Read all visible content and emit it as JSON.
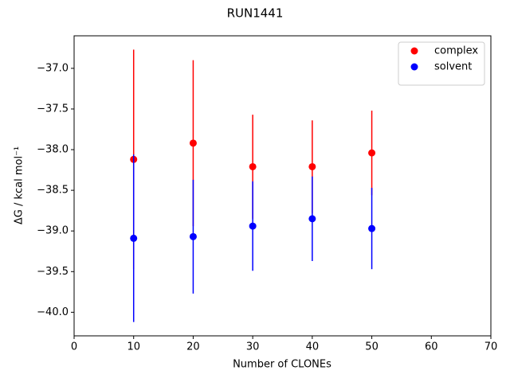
{
  "chart_data": {
    "type": "errorbar-scatter",
    "title": "RUN1441",
    "x_label": "Number of CLONEs",
    "y_label": "ΔG / kcal mol⁻¹",
    "xlim": [
      0,
      70
    ],
    "xticks": [
      0,
      10,
      20,
      30,
      40,
      50,
      60,
      70
    ],
    "ylim": [
      -40.29,
      -36.6
    ],
    "yticks": [
      {
        "value": -37.0,
        "label": "−37.0"
      },
      {
        "value": -37.5,
        "label": "−37.5"
      },
      {
        "value": -38.0,
        "label": "−38.0"
      },
      {
        "value": -38.5,
        "label": "−38.5"
      },
      {
        "value": -39.0,
        "label": "−39.0"
      },
      {
        "value": -39.5,
        "label": "−39.5"
      },
      {
        "value": -40.0,
        "label": "−40.0"
      }
    ],
    "legend_position": "upper right",
    "series": [
      {
        "name": "complex",
        "color": "#ff0000",
        "x": [
          10,
          20,
          30,
          40,
          50
        ],
        "values": [
          -38.12,
          -37.92,
          -38.21,
          -38.21,
          -38.04
        ],
        "errors": [
          1.35,
          1.02,
          0.64,
          0.57,
          0.52
        ]
      },
      {
        "name": "solvent",
        "color": "#0000ff",
        "x": [
          10,
          20,
          30,
          40,
          50
        ],
        "values": [
          -39.09,
          -39.07,
          -38.94,
          -38.85,
          -38.97
        ],
        "errors": [
          1.03,
          0.7,
          0.55,
          0.52,
          0.5
        ]
      }
    ]
  }
}
